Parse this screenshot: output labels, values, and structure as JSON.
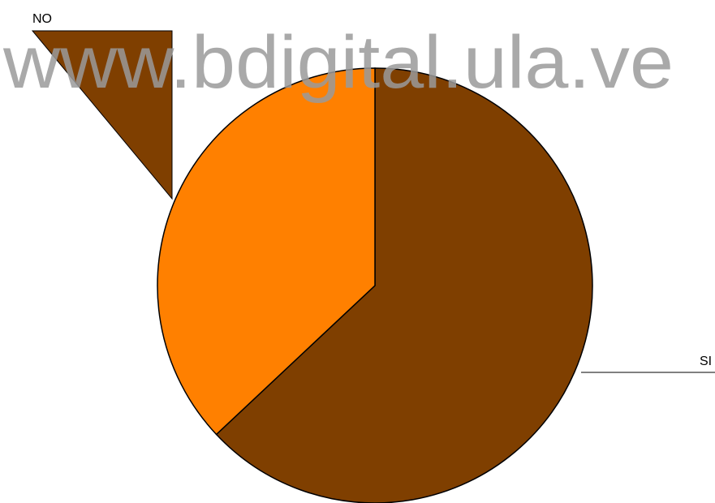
{
  "chart_data": {
    "type": "pie",
    "watermark": "www.bdigital.ula.ve",
    "categories": [
      "SI",
      "NO"
    ],
    "values": [
      63,
      37
    ],
    "colors": [
      "#7f3f00",
      "#ff8000"
    ]
  }
}
